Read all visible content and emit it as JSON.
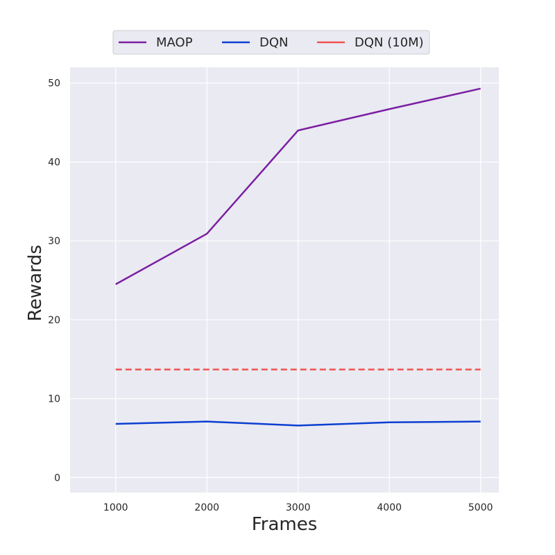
{
  "chart_data": {
    "type": "line",
    "xlabel": "Frames",
    "ylabel": "Rewards",
    "x": [
      1000,
      2000,
      3000,
      4000,
      5000
    ],
    "xticks": [
      1000,
      2000,
      3000,
      4000,
      5000
    ],
    "yticks": [
      0,
      10,
      20,
      30,
      40,
      50
    ],
    "xlim": [
      500,
      5200
    ],
    "ylim": [
      -1.9,
      52
    ],
    "grid": true,
    "legend_position": "top-center",
    "series": [
      {
        "name": "MAOP",
        "values": [
          24.5,
          30.9,
          44.0,
          46.7,
          49.3
        ],
        "color": "#7b1fa2",
        "style": "solid"
      },
      {
        "name": "DQN",
        "values": [
          6.8,
          7.1,
          6.6,
          7.0,
          7.1
        ],
        "color": "#0b3fd1",
        "style": "solid"
      },
      {
        "name": "DQN (10M)",
        "values": [
          13.7,
          13.7,
          13.7,
          13.7,
          13.7
        ],
        "color": "#ef5350",
        "style": "dashed"
      }
    ]
  }
}
